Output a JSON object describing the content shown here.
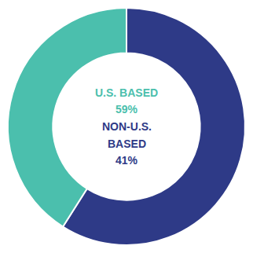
{
  "chart_data": {
    "type": "pie",
    "values": [
      59,
      41
    ],
    "colors": [
      "#2E3A87",
      "#4BBFAD"
    ],
    "annotations": [
      {
        "text": "U.S. BASED",
        "color": "#4BBFAD"
      },
      {
        "text": "59%",
        "color": "#4BBFAD"
      },
      {
        "text": "NON-U.S.",
        "color": "#2E3A87"
      },
      {
        "text": "BASED",
        "color": "#2E3A87"
      },
      {
        "text": "41%",
        "color": "#2E3A87"
      }
    ]
  }
}
